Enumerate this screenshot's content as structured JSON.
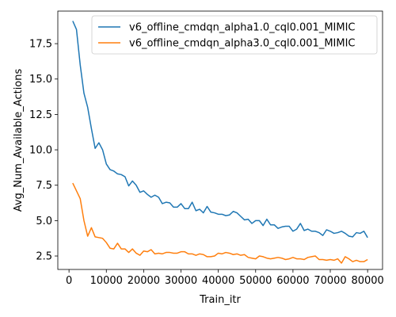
{
  "chart_data": {
    "type": "line",
    "title": "",
    "xlabel": "Train_itr",
    "ylabel": "Avg_Num_Available_Actions",
    "xlim": [
      -3000,
      84000
    ],
    "ylim": [
      1.55,
      19.8
    ],
    "xticks": [
      0,
      10000,
      20000,
      30000,
      40000,
      50000,
      60000,
      70000,
      80000
    ],
    "xtick_labels": [
      "0",
      "10000",
      "20000",
      "30000",
      "40000",
      "50000",
      "60000",
      "70000",
      "80000"
    ],
    "yticks": [
      2.5,
      5.0,
      7.5,
      10.0,
      12.5,
      15.0,
      17.5
    ],
    "ytick_labels": [
      "2.5",
      "5.0",
      "7.5",
      "10.0",
      "12.5",
      "15.0",
      "17.5"
    ],
    "grid": false,
    "legend": "top-right",
    "x": [
      1000,
      2000,
      3000,
      4000,
      5000,
      6000,
      7000,
      8000,
      9000,
      10000,
      11000,
      12000,
      13000,
      14000,
      15000,
      16000,
      17000,
      18000,
      19000,
      20000,
      21000,
      22000,
      23000,
      24000,
      25000,
      26000,
      27000,
      28000,
      29000,
      30000,
      31000,
      32000,
      33000,
      34000,
      35000,
      36000,
      37000,
      38000,
      39000,
      40000,
      41000,
      42000,
      43000,
      44000,
      45000,
      46000,
      47000,
      48000,
      49000,
      50000,
      51000,
      52000,
      53000,
      54000,
      55000,
      56000,
      57000,
      58000,
      59000,
      60000,
      61000,
      62000,
      63000,
      64000,
      65000,
      66000,
      67000,
      68000,
      69000,
      70000,
      71000,
      72000,
      73000,
      74000,
      75000,
      76000,
      77000,
      78000,
      79000,
      80000
    ],
    "series": [
      {
        "name": "v6_offline_cmdqn_alpha1.0_cql0.001_MIMIC",
        "color": "#1f77b4",
        "values": [
          19.1,
          18.5,
          16.0,
          14.0,
          13.0,
          11.5,
          10.1,
          10.5,
          10.0,
          9.0,
          8.6,
          8.5,
          8.3,
          8.25,
          8.1,
          7.45,
          7.8,
          7.5,
          7.0,
          7.1,
          6.85,
          6.65,
          6.8,
          6.65,
          6.2,
          6.3,
          6.25,
          5.95,
          5.95,
          6.2,
          5.85,
          5.85,
          6.3,
          5.7,
          5.8,
          5.55,
          6.0,
          5.6,
          5.55,
          5.45,
          5.45,
          5.35,
          5.4,
          5.65,
          5.55,
          5.3,
          5.05,
          5.1,
          4.8,
          5.0,
          5.0,
          4.65,
          5.1,
          4.7,
          4.7,
          4.45,
          4.55,
          4.6,
          4.6,
          4.25,
          4.4,
          4.8,
          4.3,
          4.4,
          4.25,
          4.25,
          4.15,
          3.95,
          4.35,
          4.25,
          4.1,
          4.15,
          4.25,
          4.1,
          3.9,
          3.85,
          4.15,
          4.1,
          4.25,
          3.8
        ]
      },
      {
        "name": "v6_offline_cmdqn_alpha3.0_cql0.001_MIMIC",
        "color": "#ff7f0e",
        "values": [
          7.65,
          7.1,
          6.55,
          5.0,
          3.9,
          4.5,
          3.85,
          3.8,
          3.75,
          3.45,
          3.05,
          3.0,
          3.4,
          3.0,
          3.0,
          2.75,
          3.0,
          2.7,
          2.55,
          2.85,
          2.8,
          2.95,
          2.65,
          2.7,
          2.65,
          2.75,
          2.75,
          2.7,
          2.7,
          2.8,
          2.8,
          2.65,
          2.65,
          2.55,
          2.65,
          2.6,
          2.45,
          2.45,
          2.5,
          2.7,
          2.65,
          2.75,
          2.7,
          2.6,
          2.65,
          2.55,
          2.6,
          2.4,
          2.35,
          2.3,
          2.5,
          2.45,
          2.35,
          2.3,
          2.35,
          2.4,
          2.35,
          2.25,
          2.3,
          2.4,
          2.3,
          2.3,
          2.25,
          2.4,
          2.45,
          2.5,
          2.25,
          2.25,
          2.2,
          2.25,
          2.2,
          2.3,
          2.0,
          2.45,
          2.3,
          2.1,
          2.2,
          2.1,
          2.1,
          2.25
        ]
      }
    ]
  }
}
